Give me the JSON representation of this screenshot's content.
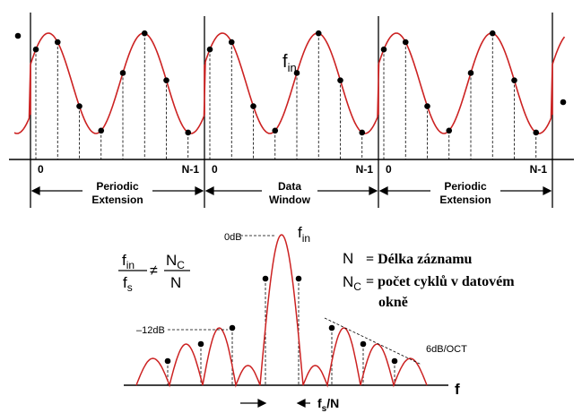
{
  "top": {
    "signal_label": "f",
    "signal_label_sub": "in",
    "ticks": [
      "0",
      "N-1",
      "0",
      "N-1",
      "0",
      "N-1"
    ],
    "sections": [
      {
        "line1": "Periodic",
        "line2": "Extension"
      },
      {
        "line1": "Data",
        "line2": "Window"
      },
      {
        "line1": "Periodic",
        "line2": "Extension"
      }
    ]
  },
  "bottom": {
    "peak_label": "0dB",
    "peak_freq_label": "f",
    "peak_freq_sub": "in",
    "sidelobe_label": "–12dB",
    "rolloff_label": "6dB/OCT",
    "axis_label": "f",
    "spacing_label": "f",
    "spacing_sub": "s",
    "spacing_suffix": "/N"
  },
  "formula": {
    "num_left": "f",
    "num_left_sub": "in",
    "den_left": "f",
    "den_left_sub": "s",
    "operator": "≠",
    "num_right": "N",
    "num_right_sub": "C",
    "den_right": "N"
  },
  "legend": {
    "n_symbol": "N",
    "n_def": "= Délka záznamu",
    "nc_symbol": "N",
    "nc_sub": "C",
    "nc_def_line1": "= počet cyklů v datovém",
    "nc_def_line2": "okně"
  },
  "colors": {
    "signal": "#cc2222",
    "ink": "#000000"
  }
}
